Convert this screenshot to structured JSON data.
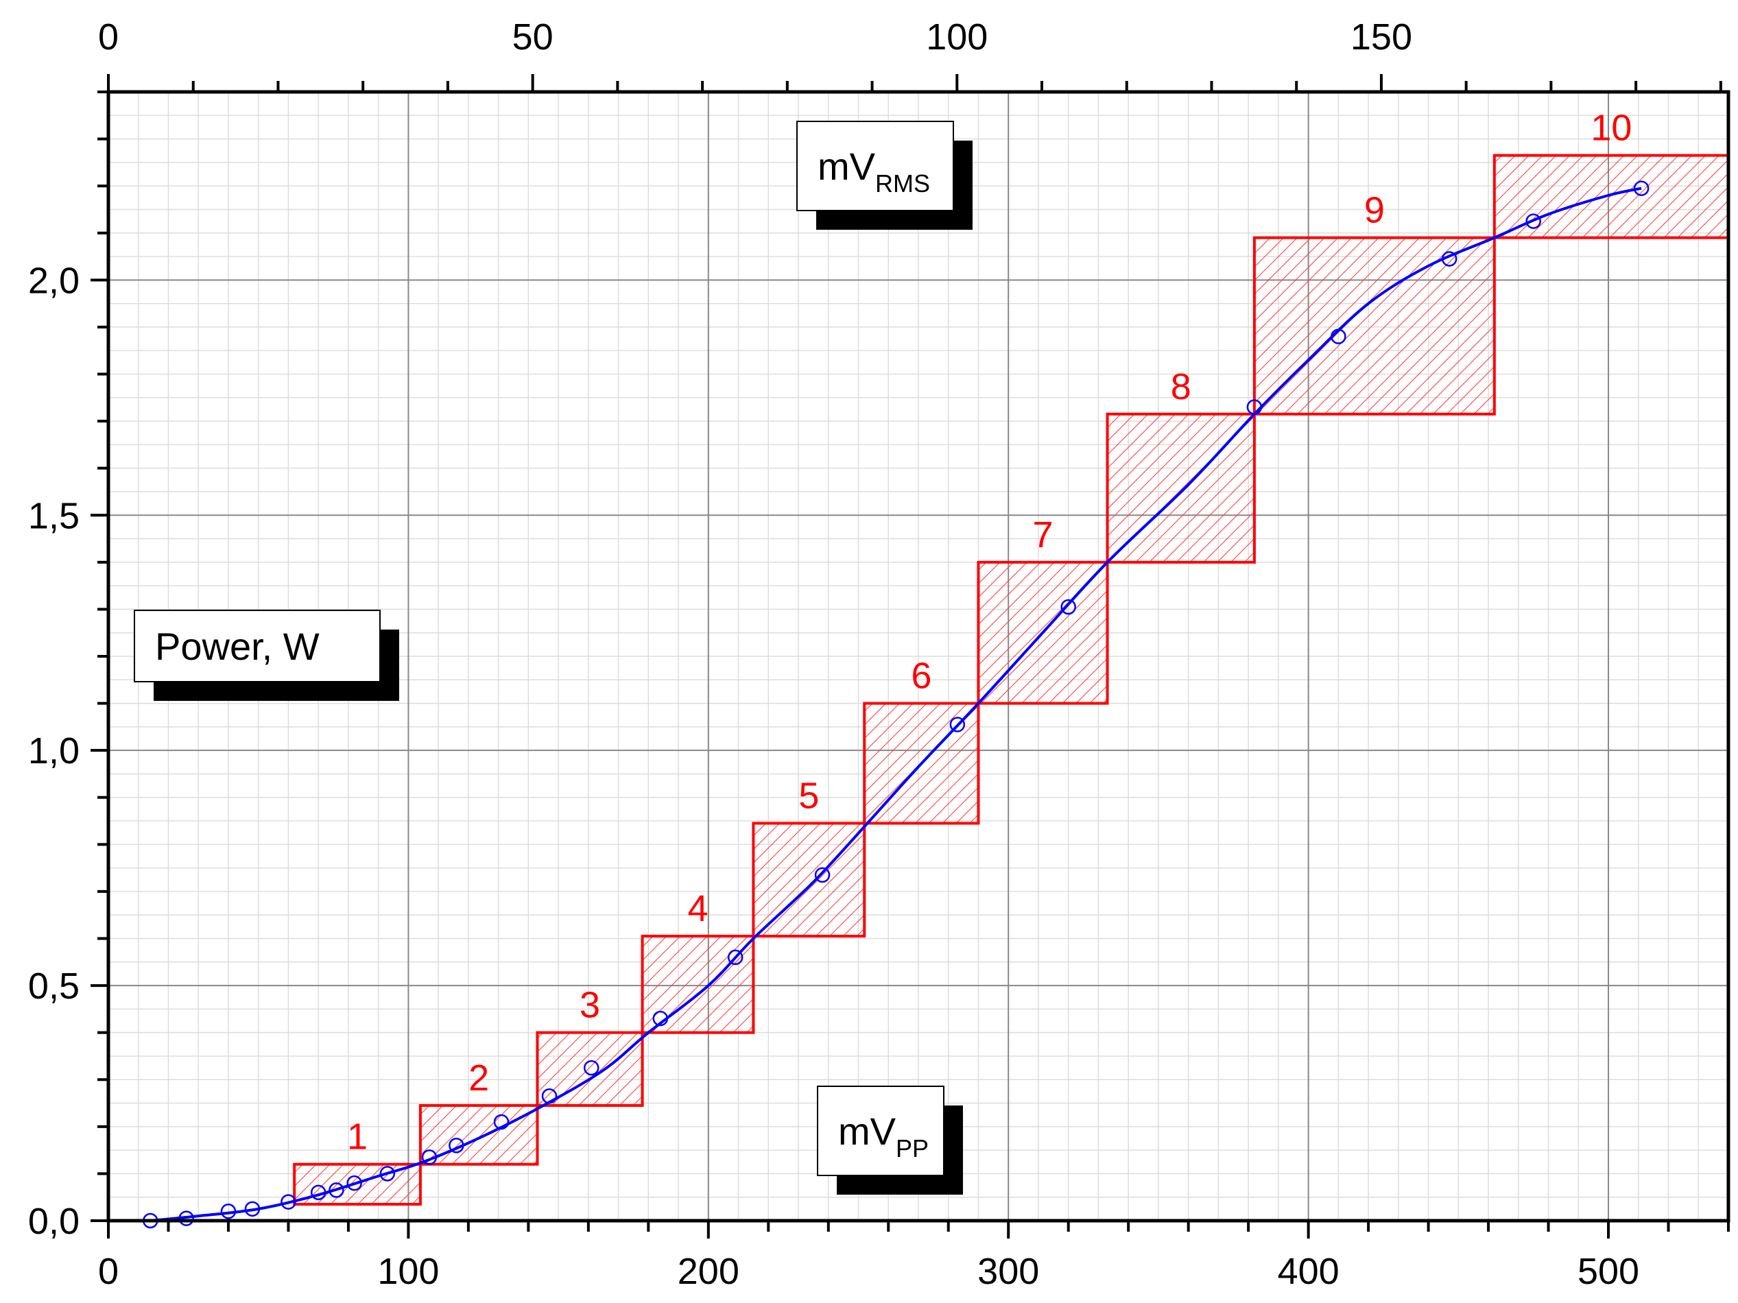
{
  "chart_data": {
    "type": "line",
    "title": "",
    "xlabel": "",
    "ylabel": "",
    "xlim": [
      0,
      540
    ],
    "ylim": [
      0,
      2.4
    ],
    "x_ticks": [
      0,
      100,
      200,
      300,
      400,
      500
    ],
    "x_tick_labels": [
      "0",
      "100",
      "200",
      "300",
      "400",
      "500"
    ],
    "top_xlim": [
      0,
      190.9
    ],
    "top_ticks": [
      0,
      50,
      100,
      150
    ],
    "top_tick_labels": [
      "0",
      "50",
      "100",
      "150"
    ],
    "y_ticks": [
      0,
      0.5,
      1.0,
      1.5,
      2.0
    ],
    "y_tick_labels": [
      "0,0",
      "0,5",
      "1,0",
      "1,5",
      "2,0"
    ],
    "grid": true,
    "legend_boxes": [
      {
        "main": "mV",
        "sub": "RMS",
        "placement": "top-center"
      },
      {
        "main": "Power, W",
        "sub": "",
        "placement": "left-middle"
      },
      {
        "main": "mV",
        "sub": "PP",
        "placement": "bottom-center"
      }
    ],
    "series": [
      {
        "type": "scatter",
        "x": [
          14,
          26,
          40,
          48,
          60,
          70,
          76,
          82,
          93,
          107,
          116,
          131,
          147,
          161,
          184,
          209,
          238,
          283,
          320,
          382,
          410,
          447,
          475,
          511
        ],
        "y": [
          0.0,
          0.005,
          0.02,
          0.025,
          0.04,
          0.06,
          0.065,
          0.08,
          0.1,
          0.135,
          0.16,
          0.21,
          0.265,
          0.325,
          0.43,
          0.56,
          0.735,
          1.055,
          1.305,
          1.73,
          1.88,
          2.045,
          2.125,
          2.195
        ]
      },
      {
        "type": "line",
        "x": [
          14,
          30,
          50,
          70,
          90,
          105,
          125,
          145,
          165,
          180,
          200,
          215,
          235,
          253,
          270,
          290,
          310,
          333,
          360,
          382,
          400,
          420,
          440,
          462,
          480,
          500,
          511
        ],
        "y": [
          0.0,
          0.01,
          0.025,
          0.055,
          0.095,
          0.125,
          0.18,
          0.245,
          0.32,
          0.4,
          0.5,
          0.6,
          0.72,
          0.845,
          0.965,
          1.1,
          1.24,
          1.4,
          1.565,
          1.715,
          1.83,
          1.95,
          2.03,
          2.09,
          2.14,
          2.18,
          2.195
        ]
      }
    ],
    "boxes": [
      {
        "label": "1",
        "x0": 62,
        "x1": 104,
        "y0": 0.035,
        "y1": 0.12
      },
      {
        "label": "2",
        "x0": 104,
        "x1": 143,
        "y0": 0.12,
        "y1": 0.245
      },
      {
        "label": "3",
        "x0": 143,
        "x1": 178,
        "y0": 0.245,
        "y1": 0.4
      },
      {
        "label": "4",
        "x0": 178,
        "x1": 215,
        "y0": 0.4,
        "y1": 0.605
      },
      {
        "label": "5",
        "x0": 215,
        "x1": 252,
        "y0": 0.605,
        "y1": 0.845
      },
      {
        "label": "6",
        "x0": 252,
        "x1": 290,
        "y0": 0.845,
        "y1": 1.1
      },
      {
        "label": "7",
        "x0": 290,
        "x1": 333,
        "y0": 1.1,
        "y1": 1.4
      },
      {
        "label": "8",
        "x0": 333,
        "x1": 382,
        "y0": 1.4,
        "y1": 1.715
      },
      {
        "label": "9",
        "x0": 382,
        "x1": 462,
        "y0": 1.715,
        "y1": 2.09
      },
      {
        "label": "10",
        "x0": 462,
        "x1": 540,
        "y0": 2.09,
        "y1": 2.265
      }
    ],
    "colors": {
      "series": "#0000ff",
      "boxes": "#ff0000",
      "grid_major": "#888888",
      "grid_minor": "#dddddd"
    }
  }
}
